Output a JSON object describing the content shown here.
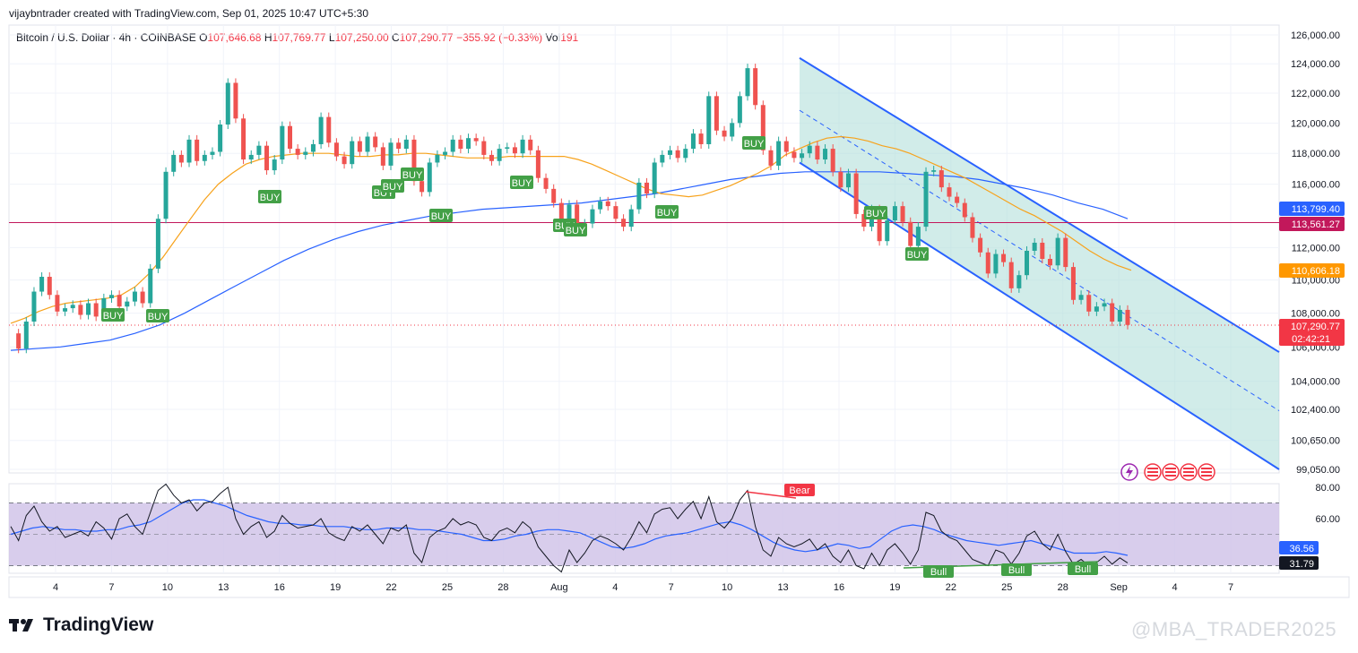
{
  "header": {
    "credit": "vijaybntrader created with TradingView.com, Sep 01, 2025 10:47 UTC+5:30"
  },
  "legend": {
    "symbol": "Bitcoin / U.S. Dollar · 4h · COINBASE",
    "o_label": "O",
    "o_value": "107,646.68",
    "h_label": "H",
    "h_value": "107,769.77",
    "l_label": "L",
    "l_value": "107,250.00",
    "c_label": "C",
    "c_value": "107,290.77",
    "change": "−355.92 (−0.33%)",
    "vol_label": "Vol",
    "vol_value": "191"
  },
  "colors": {
    "up": "#26a69a",
    "down": "#ef5350",
    "ma_fast": "#f7a21b",
    "ma_slow": "#2962ff",
    "resistance": "#c2185b",
    "channel": "#2962ff",
    "channel_fill": "#b2dfdb",
    "rsi_bg": "#d1c4e9",
    "rsi_line": "#131722",
    "rsi_ma": "#2962ff",
    "buy_badge": "#43a047",
    "bear_badge": "#f23645",
    "bull_badge": "#43a047"
  },
  "chart_data": [
    {
      "type": "candlestick",
      "title": "Bitcoin / U.S. Dollar · 4h · COINBASE",
      "x_tick_labels": [
        "4",
        "7",
        "10",
        "13",
        "16",
        "19",
        "22",
        "25",
        "28",
        "Aug",
        "4",
        "7",
        "10",
        "13",
        "16",
        "19",
        "22",
        "25",
        "28",
        "Sep",
        "4",
        "7"
      ],
      "y_tick_labels": [
        "126,000.00",
        "124,000.00",
        "122,000.00",
        "120,000.00",
        "118,000.00",
        "116,000.00",
        "112,000.00",
        "110,000.00",
        "108,000.00",
        "106,000.00",
        "104,000.00",
        "102,400.00",
        "100,650.00",
        "99,050.00"
      ],
      "y_scale": "log",
      "ylim": [
        99050,
        126000
      ],
      "price_markers": [
        {
          "label": "113,799.40",
          "color": "#2962ff"
        },
        {
          "label": "113,561.27",
          "color": "#c2185b"
        },
        {
          "label": "110,606.18",
          "color": "#ff9800"
        },
        {
          "label": "107,290.77",
          "sub": "02:42:21",
          "color": "#f23645"
        }
      ],
      "horizontal_line": 113561.27,
      "last_price": 107290.77,
      "close_series": [
        106800,
        105900,
        107500,
        109300,
        110200,
        109100,
        108100,
        108300,
        108500,
        107900,
        108600,
        107800,
        108900,
        109100,
        108400,
        108700,
        109300,
        108600,
        110700,
        113800,
        116800,
        117900,
        117400,
        118900,
        117500,
        117900,
        118100,
        119900,
        122700,
        120300,
        117600,
        117900,
        118500,
        116900,
        117600,
        119800,
        118300,
        117900,
        118100,
        118600,
        120400,
        118700,
        117800,
        117300,
        118800,
        118100,
        119100,
        118400,
        117200,
        118700,
        118300,
        118900,
        116200,
        115500,
        117400,
        117900,
        118100,
        118900,
        118300,
        119000,
        118800,
        117900,
        117500,
        118300,
        118400,
        118000,
        118900,
        118200,
        116400,
        115700,
        114800,
        113400,
        114700,
        113100,
        113500,
        114400,
        114900,
        114600,
        113800,
        113300,
        114400,
        116100,
        115400,
        117400,
        117900,
        118200,
        117700,
        118300,
        119300,
        118600,
        121800,
        119500,
        119100,
        120000,
        121800,
        123700,
        121200,
        118200,
        117200,
        118800,
        118100,
        117700,
        118000,
        118500,
        117600,
        118300,
        116800,
        115800,
        116700,
        114100,
        113300,
        114400,
        112400,
        113700,
        114600,
        113600,
        112100,
        113300,
        116800,
        116900,
        115800,
        115200,
        114800,
        113900,
        112600,
        111700,
        110400,
        111600,
        111100,
        109500,
        110300,
        111800,
        112300,
        111300,
        110900,
        112600,
        110800,
        108800,
        109100,
        108100,
        108400,
        108600,
        107500,
        108200,
        107300
      ],
      "ma_fast_series": [
        107400,
        107700,
        108100,
        108400,
        108600,
        108700,
        108800,
        108900,
        109100,
        109600,
        110400,
        111400,
        112600,
        113800,
        115000,
        116000,
        116700,
        117300,
        117600,
        117800,
        117900,
        118000,
        118000,
        118000,
        117900,
        117800,
        117800,
        117900,
        117900,
        118000,
        118000,
        117900,
        117800,
        117700,
        117700,
        117700,
        117800,
        117800,
        117800,
        117800,
        117800,
        117600,
        117300,
        116900,
        116500,
        116100,
        115700,
        115400,
        115300,
        115200,
        115300,
        115600,
        115900,
        116300,
        116700,
        117200,
        117900,
        118300,
        118700,
        119000,
        119100,
        119000,
        118800,
        118500,
        118300,
        118000,
        117600,
        117200,
        116800,
        116400,
        115900,
        115400,
        114900,
        114400,
        114000,
        113500,
        113000,
        112400,
        111800,
        111300,
        110900,
        110600
      ],
      "ma_slow_series": [
        105800,
        105900,
        106000,
        106200,
        106400,
        106800,
        107300,
        108000,
        108800,
        109600,
        110400,
        111200,
        111900,
        112500,
        113000,
        113400,
        113700,
        114000,
        114200,
        114400,
        114500,
        114600,
        114700,
        114800,
        115000,
        115200,
        115400,
        115700,
        116000,
        116300,
        116500,
        116700,
        116800,
        116800,
        116800,
        116800,
        116700,
        116600,
        116500,
        116300,
        116000,
        115700,
        115300,
        114800,
        114400,
        113800
      ],
      "channel": {
        "upper_start": 124400,
        "upper_end": 105700,
        "lower_start": 117400,
        "lower_end": 99050
      },
      "signals": [
        {
          "label": "BUY"
        },
        {
          "label": "BUY"
        },
        {
          "label": "BUY"
        },
        {
          "label": "BUY"
        },
        {
          "label": "BUY"
        },
        {
          "label": "BUY"
        },
        {
          "label": "BUY"
        },
        {
          "label": "BUY"
        },
        {
          "label": "BUY"
        },
        {
          "label": "BUY"
        },
        {
          "label": "BUY"
        },
        {
          "label": "BUY"
        },
        {
          "label": "BUY"
        },
        {
          "label": "BUY"
        }
      ]
    },
    {
      "type": "line",
      "title": "RSI",
      "y_tick_labels": [
        "80.00",
        "60.00"
      ],
      "ylim": [
        25,
        85
      ],
      "band": [
        30,
        70
      ],
      "midline": 50,
      "markers": [
        {
          "label": "36.56",
          "color": "#2962ff"
        },
        {
          "label": "31.79",
          "color": "#131722"
        }
      ],
      "rsi_series": [
        55,
        46,
        62,
        68,
        58,
        52,
        55,
        48,
        50,
        52,
        49,
        58,
        54,
        47,
        60,
        63,
        55,
        50,
        64,
        78,
        82,
        75,
        70,
        72,
        65,
        70,
        71,
        76,
        80,
        60,
        50,
        55,
        58,
        48,
        52,
        62,
        57,
        54,
        55,
        56,
        60,
        51,
        48,
        46,
        55,
        52,
        56,
        50,
        44,
        54,
        52,
        56,
        38,
        32,
        48,
        52,
        54,
        60,
        56,
        58,
        56,
        48,
        46,
        52,
        54,
        51,
        58,
        54,
        42,
        36,
        30,
        26,
        40,
        32,
        38,
        46,
        49,
        47,
        44,
        40,
        48,
        58,
        51,
        63,
        66,
        67,
        60,
        66,
        71,
        60,
        74,
        58,
        54,
        60,
        72,
        78,
        55,
        40,
        36,
        48,
        44,
        42,
        44,
        47,
        40,
        44,
        36,
        32,
        40,
        30,
        28,
        38,
        30,
        40,
        44,
        38,
        31,
        40,
        64,
        62,
        52,
        48,
        46,
        40,
        34,
        32,
        30,
        40,
        38,
        31,
        38,
        49,
        52,
        44,
        40,
        50,
        39,
        31,
        34,
        30,
        32,
        36,
        31,
        35,
        31.79
      ],
      "rsi_ma_series": [
        50,
        52,
        54,
        55,
        54,
        53,
        53,
        52,
        52,
        53,
        53,
        55,
        56,
        58,
        62,
        66,
        70,
        72,
        72,
        70,
        68,
        65,
        62,
        60,
        58,
        57,
        57,
        56,
        56,
        55,
        55,
        55,
        54,
        53,
        53,
        54,
        54,
        54,
        53,
        53,
        52,
        51,
        50,
        48,
        46,
        46,
        47,
        49,
        50,
        52,
        53,
        53,
        52,
        51,
        48,
        45,
        42,
        41,
        42,
        44,
        47,
        49,
        50,
        51,
        53,
        55,
        57,
        58,
        56,
        53,
        49,
        45,
        42,
        40,
        39,
        40,
        42,
        44,
        43,
        41,
        42,
        47,
        52,
        55,
        56,
        55,
        53,
        50,
        48,
        46,
        45,
        44,
        43,
        44,
        45,
        46,
        44,
        42,
        40,
        38,
        38,
        38,
        39,
        38,
        36.56
      ],
      "signals": [
        {
          "label": "Bear"
        },
        {
          "label": "Bull"
        },
        {
          "label": "Bull"
        },
        {
          "label": "Bull"
        }
      ]
    }
  ],
  "brand": {
    "name": "TradingView"
  },
  "watermark": {
    "text": "@MBA_TRADER2025"
  }
}
